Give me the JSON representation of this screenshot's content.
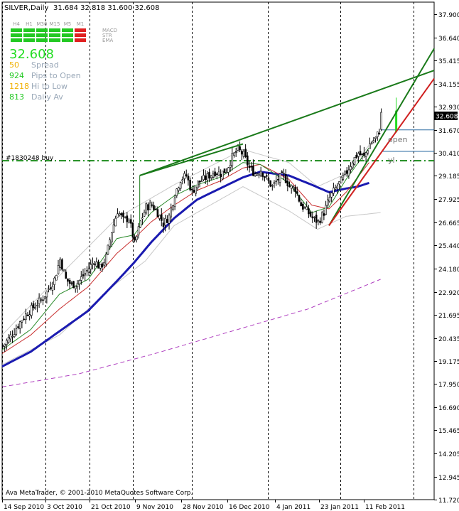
{
  "header": {
    "symbol": "SILVER,Daily",
    "ohlc": "31.684 32.818 31.600 32.608"
  },
  "indicator_panel": {
    "timeframes": [
      "H4",
      "H1",
      "M30",
      "M15",
      "M5",
      "M1"
    ],
    "signal_rows": [
      {
        "label": "MACD",
        "colors": [
          "#22c822",
          "#22c822",
          "#22c822",
          "#22c822",
          "#22c822",
          "#e02020"
        ]
      },
      {
        "label": "STR",
        "colors": [
          "#22c822",
          "#22c822",
          "#22c822",
          "#22c822",
          "#22c822",
          "#e02020"
        ]
      },
      {
        "label": "EMA",
        "colors": [
          "#22c822",
          "#22c822",
          "#22c822",
          "#22c822",
          "#22c822",
          "#e02020"
        ]
      }
    ],
    "price": "32.608",
    "stats": [
      {
        "value": "50",
        "label": "Spread",
        "value_color": "#f0b000"
      },
      {
        "value": "924",
        "label": "Pips to Open",
        "value_color": "#22c822"
      },
      {
        "value": "1218",
        "label": "Hi to Low",
        "value_color": "#f0b000"
      },
      {
        "value": "813",
        "label": "Daily Av",
        "value_color": "#22c822"
      }
    ]
  },
  "order_label": "#1830248 buy",
  "level_labels": {
    "open": "open",
    "yl": "yl"
  },
  "current_price_tag": "32.608",
  "copyright": "Ava MetaTrader, © 2001-2010 MetaQuotes Software Corp.",
  "chart_data": {
    "type": "candlestick",
    "title": "SILVER,Daily",
    "ylim": [
      11.72,
      38.55
    ],
    "y_ticks": [
      "37.900",
      "36.640",
      "35.415",
      "34.155",
      "32.930",
      "31.670",
      "30.410",
      "29.185",
      "27.925",
      "26.665",
      "25.440",
      "24.180",
      "22.920",
      "21.695",
      "20.435",
      "19.175",
      "17.950",
      "16.690",
      "15.465",
      "14.205",
      "12.945",
      "11.720"
    ],
    "x_ticks": [
      "14 Sep 2010",
      "3 Oct 2010",
      "21 Oct 2010",
      "9 Nov 2010",
      "28 Nov 2010",
      "16 Dec 2010",
      "4 Jan 2011",
      "23 Jan 2011",
      "11 Feb 2011"
    ],
    "close_anchors": [
      [
        0,
        20.0
      ],
      [
        3,
        20.4
      ],
      [
        6,
        20.8
      ],
      [
        9,
        21.3
      ],
      [
        12,
        21.7
      ],
      [
        15,
        22.0
      ],
      [
        18,
        22.3
      ],
      [
        21,
        22.6
      ],
      [
        24,
        23.1
      ],
      [
        27,
        23.6
      ],
      [
        30,
        24.7
      ],
      [
        33,
        23.6
      ],
      [
        36,
        23.3
      ],
      [
        39,
        23.4
      ],
      [
        42,
        23.8
      ],
      [
        45,
        24.2
      ],
      [
        48,
        24.6
      ],
      [
        51,
        24.2
      ],
      [
        54,
        24.8
      ],
      [
        57,
        26.2
      ],
      [
        60,
        27.3
      ],
      [
        63,
        26.8
      ],
      [
        66,
        26.9
      ],
      [
        69,
        25.5
      ],
      [
        72,
        26.7
      ],
      [
        75,
        27.5
      ],
      [
        78,
        27.6
      ],
      [
        81,
        27.2
      ],
      [
        84,
        26.6
      ],
      [
        87,
        27.0
      ],
      [
        90,
        28.2
      ],
      [
        93,
        29.0
      ],
      [
        96,
        29.2
      ],
      [
        99,
        28.3
      ],
      [
        102,
        28.8
      ],
      [
        105,
        29.0
      ],
      [
        108,
        29.2
      ],
      [
        111,
        29.4
      ],
      [
        114,
        29.3
      ],
      [
        117,
        29.5
      ],
      [
        120,
        30.2
      ],
      [
        123,
        30.6
      ],
      [
        126,
        30.3
      ],
      [
        129,
        29.6
      ],
      [
        132,
        29.3
      ],
      [
        135,
        29.5
      ],
      [
        138,
        29.0
      ],
      [
        141,
        28.6
      ],
      [
        144,
        29.0
      ],
      [
        147,
        29.2
      ],
      [
        150,
        28.6
      ],
      [
        153,
        28.5
      ],
      [
        156,
        27.6
      ],
      [
        159,
        27.3
      ],
      [
        162,
        26.9
      ],
      [
        165,
        26.7
      ],
      [
        168,
        27.2
      ],
      [
        171,
        28.0
      ],
      [
        174,
        28.5
      ],
      [
        177,
        28.9
      ],
      [
        180,
        29.4
      ],
      [
        183,
        30.0
      ],
      [
        186,
        30.4
      ],
      [
        189,
        30.2
      ],
      [
        192,
        30.9
      ],
      [
        195,
        31.2
      ],
      [
        197,
        31.6
      ],
      [
        198,
        32.608
      ]
    ],
    "series": [
      {
        "name": "",
        "color": "#1a1ab0",
        "anchors": [
          [
            0,
            18.9
          ],
          [
            15,
            19.7
          ],
          [
            30,
            20.8
          ],
          [
            45,
            21.9
          ],
          [
            60,
            23.5
          ],
          [
            69,
            24.5
          ],
          [
            78,
            25.6
          ],
          [
            90,
            26.9
          ],
          [
            102,
            27.9
          ],
          [
            114,
            28.5
          ],
          [
            126,
            29.1
          ],
          [
            135,
            29.4
          ],
          [
            150,
            29.2
          ],
          [
            162,
            28.7
          ],
          [
            171,
            28.3
          ],
          [
            180,
            28.5
          ],
          [
            186,
            28.6
          ],
          [
            192,
            28.8
          ]
        ]
      },
      {
        "name": "",
        "color": "#c83030",
        "anchors": [
          [
            0,
            19.6
          ],
          [
            15,
            20.6
          ],
          [
            30,
            22.0
          ],
          [
            45,
            23.2
          ],
          [
            60,
            25.0
          ],
          [
            69,
            25.8
          ],
          [
            78,
            26.7
          ],
          [
            90,
            27.6
          ],
          [
            102,
            28.4
          ],
          [
            114,
            28.9
          ],
          [
            126,
            29.6
          ],
          [
            135,
            29.8
          ],
          [
            150,
            29.0
          ],
          [
            162,
            27.6
          ],
          [
            171,
            27.4
          ],
          [
            180,
            28.3
          ],
          [
            192,
            29.9
          ]
        ]
      },
      {
        "name": "",
        "color": "#2a8a2a",
        "anchors": [
          [
            0,
            19.8
          ],
          [
            15,
            20.9
          ],
          [
            30,
            22.8
          ],
          [
            45,
            23.6
          ],
          [
            60,
            25.8
          ],
          [
            69,
            26.0
          ],
          [
            78,
            27.2
          ],
          [
            90,
            28.1
          ],
          [
            102,
            28.7
          ],
          [
            114,
            29.1
          ],
          [
            126,
            29.9
          ],
          [
            135,
            29.8
          ],
          [
            150,
            28.8
          ],
          [
            162,
            27.2
          ],
          [
            171,
            27.5
          ],
          [
            180,
            29.0
          ],
          [
            192,
            30.7
          ]
        ]
      },
      {
        "name": "",
        "color": "#b040c0",
        "dash": true,
        "anchors": [
          [
            0,
            17.8
          ],
          [
            40,
            18.5
          ],
          [
            80,
            19.6
          ],
          [
            120,
            20.8
          ],
          [
            160,
            22.0
          ],
          [
            198,
            23.6
          ]
        ]
      }
    ],
    "bands": {
      "color": "#c8c8c8",
      "upper": [
        [
          0,
          20.6
        ],
        [
          30,
          23.8
        ],
        [
          60,
          26.9
        ],
        [
          90,
          28.7
        ],
        [
          126,
          30.6
        ],
        [
          150,
          29.9
        ],
        [
          165,
          28.6
        ],
        [
          180,
          29.3
        ],
        [
          198,
          31.6
        ]
      ],
      "lower": [
        [
          0,
          19.0
        ],
        [
          30,
          20.6
        ],
        [
          60,
          23.4
        ],
        [
          75,
          24.6
        ],
        [
          90,
          26.5
        ],
        [
          126,
          28.6
        ],
        [
          150,
          27.3
        ],
        [
          165,
          26.3
        ],
        [
          180,
          27.0
        ],
        [
          198,
          27.2
        ]
      ]
    },
    "trendlines": [
      {
        "color": "#1a7a1a",
        "from": [
          72,
          29.2
        ],
        "to": [
          126,
          30.9
        ],
        "kind": "segment"
      },
      {
        "color": "#1a7a1a",
        "from": [
          72,
          29.2
        ],
        "to": [
          235,
          35.2
        ],
        "kind": "ray"
      },
      {
        "color": "#1a7a1a",
        "from": [
          171,
          26.5
        ],
        "to": [
          235,
          37.6
        ],
        "kind": "ray"
      },
      {
        "color": "#d02020",
        "from": [
          171,
          26.5
        ],
        "to": [
          230,
          35.0
        ],
        "kind": "ray"
      }
    ],
    "levels": [
      {
        "name": "order",
        "value": 30.0,
        "color": "#1a8a1a",
        "style": "dashdot"
      },
      {
        "name": "open",
        "value": 31.66,
        "color": "#2a6aa0",
        "style": "solid"
      },
      {
        "name": "yl",
        "value": 30.5,
        "color": "#2a6aa0",
        "style": "solid"
      }
    ]
  }
}
